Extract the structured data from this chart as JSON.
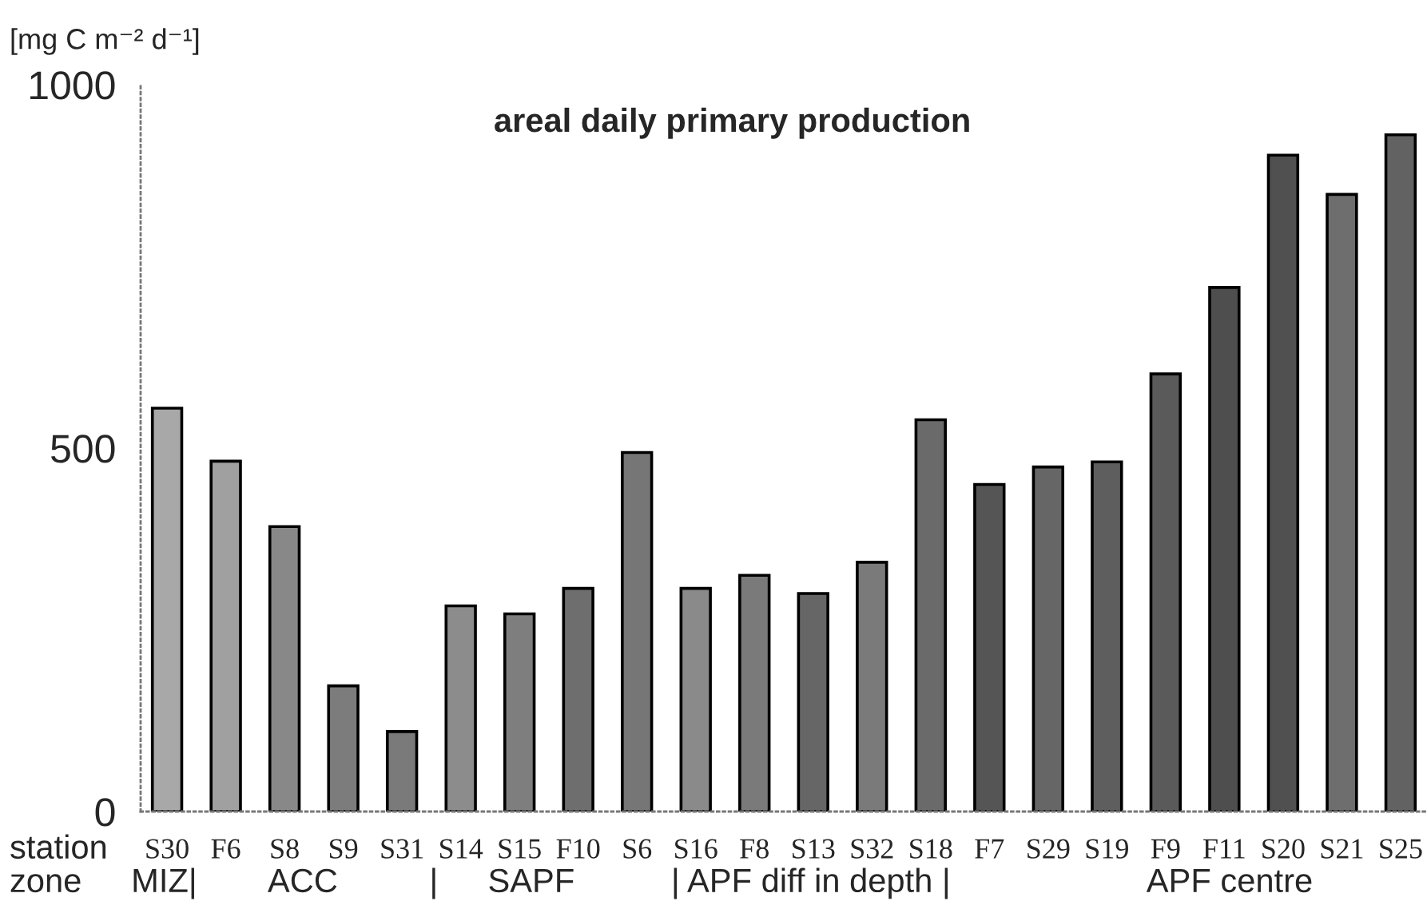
{
  "chart_data": {
    "type": "bar",
    "title": "areal daily primary production",
    "ylabel": "[mg C m⁻² d⁻¹]",
    "xlabel": "station",
    "categories": [
      "S30",
      "F6",
      "S8",
      "S9",
      "S31",
      "S14",
      "S15",
      "F10",
      "S6",
      "S16",
      "F8",
      "S13",
      "S32",
      "S18",
      "F7",
      "S29",
      "S19",
      "F9",
      "F11",
      "S20",
      "S21",
      "S25"
    ],
    "values": [
      555,
      482,
      392,
      173,
      110,
      283,
      272,
      307,
      494,
      307,
      325,
      300,
      343,
      539,
      450,
      474,
      481,
      602,
      721,
      903,
      849,
      931
    ],
    "colors": [
      "#a8a8a8",
      "#a0a0a0",
      "#888888",
      "#7c7c7c",
      "#7a7a7a",
      "#8c8c8c",
      "#7e7e7e",
      "#6e6e6e",
      "#767676",
      "#8a8a8a",
      "#7a7a7a",
      "#666666",
      "#7a7a7a",
      "#6a6a6a",
      "#555555",
      "#666666",
      "#5e5e5e",
      "#5a5a5a",
      "#4e4e4e",
      "#505050",
      "#6e6e6e",
      "#626262"
    ],
    "ylim": [
      0,
      1000
    ],
    "yticks": [
      0,
      500,
      1000
    ],
    "annotations": [
      "zone",
      "MIZ|",
      "ACC",
      "|",
      "SAPF",
      "| APF diff in depth |",
      "APF centre"
    ]
  }
}
